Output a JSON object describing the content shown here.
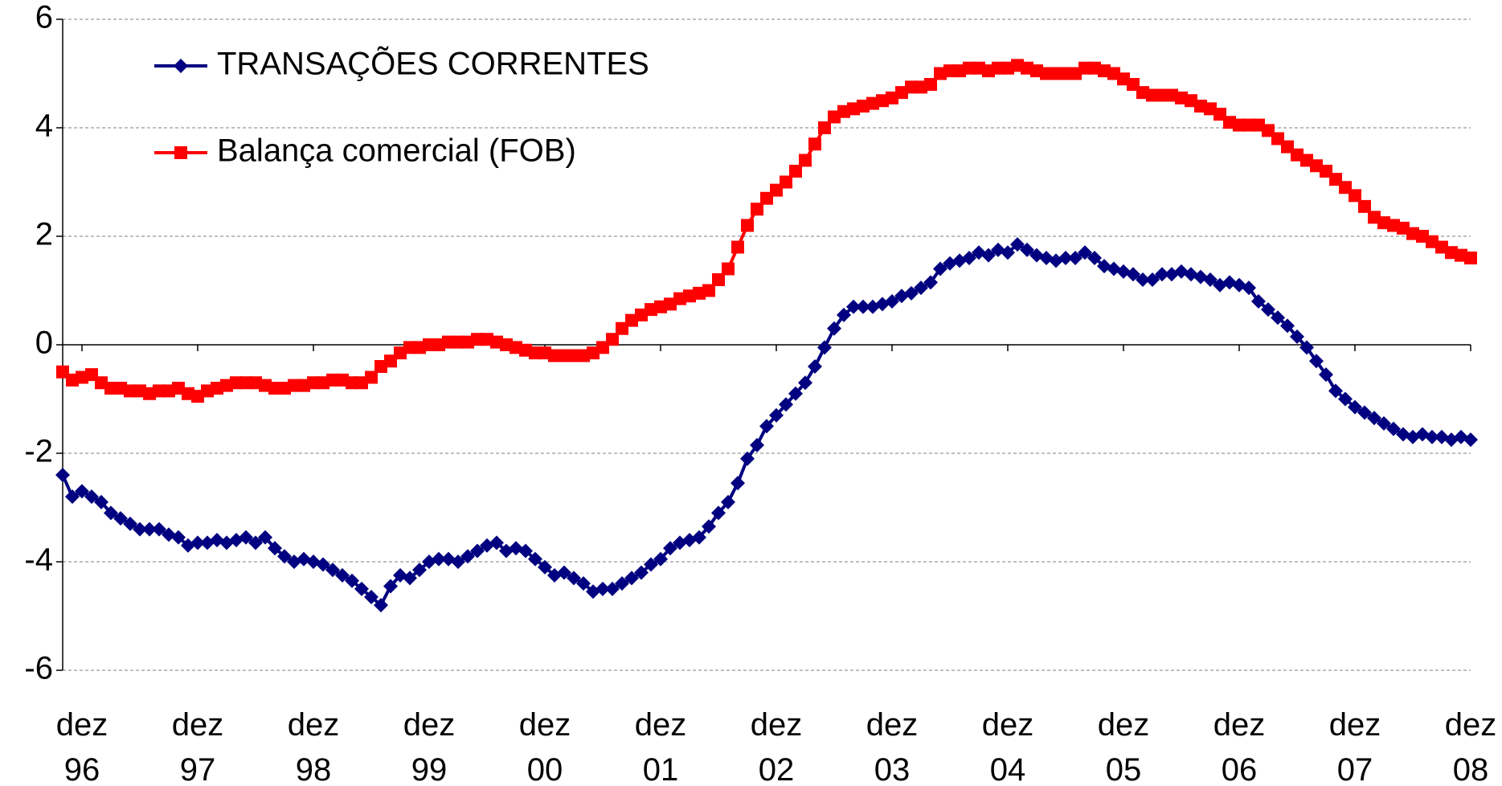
{
  "chart_data": {
    "type": "line",
    "categories": [
      null,
      null,
      "dez 96",
      null,
      null,
      null,
      null,
      null,
      null,
      null,
      null,
      null,
      null,
      null,
      "dez 97",
      null,
      null,
      null,
      null,
      null,
      null,
      null,
      null,
      null,
      null,
      null,
      "dez 98",
      null,
      null,
      null,
      null,
      null,
      null,
      null,
      null,
      null,
      null,
      null,
      "dez 99",
      null,
      null,
      null,
      null,
      null,
      null,
      null,
      null,
      null,
      null,
      null,
      "dez 00",
      null,
      null,
      null,
      null,
      null,
      null,
      null,
      null,
      null,
      null,
      null,
      "dez 01",
      null,
      null,
      null,
      null,
      null,
      null,
      null,
      null,
      null,
      null,
      null,
      "dez 02",
      null,
      null,
      null,
      null,
      null,
      null,
      null,
      null,
      null,
      null,
      null,
      "dez 03",
      null,
      null,
      null,
      null,
      null,
      null,
      null,
      null,
      null,
      null,
      null,
      "dez 04",
      null,
      null,
      null,
      null,
      null,
      null,
      null,
      null,
      null,
      null,
      null,
      "dez 05",
      null,
      null,
      null,
      null,
      null,
      null,
      null,
      null,
      null,
      null,
      null,
      "dez 06",
      null,
      null,
      null,
      null,
      null,
      null,
      null,
      null,
      null,
      null,
      null,
      "dez 07",
      null,
      null,
      null,
      null,
      null,
      null,
      null,
      null,
      null,
      null,
      null,
      "dez 08"
    ],
    "series": [
      {
        "name": "TRANSAÇÕES CORRENTES",
        "color": "#000080",
        "marker": "diamond",
        "values": [
          -2.4,
          -2.8,
          -2.7,
          -2.8,
          -2.9,
          -3.1,
          -3.2,
          -3.3,
          -3.4,
          -3.4,
          -3.4,
          -3.5,
          -3.55,
          -3.7,
          -3.65,
          -3.65,
          -3.6,
          -3.65,
          -3.6,
          -3.55,
          -3.65,
          -3.55,
          -3.75,
          -3.9,
          -4.0,
          -3.95,
          -4.0,
          -4.05,
          -4.15,
          -4.25,
          -4.35,
          -4.5,
          -4.65,
          -4.8,
          -4.45,
          -4.25,
          -4.3,
          -4.15,
          -4.0,
          -3.95,
          -3.95,
          -4.0,
          -3.9,
          -3.8,
          -3.7,
          -3.65,
          -3.8,
          -3.75,
          -3.8,
          -3.95,
          -4.1,
          -4.25,
          -4.2,
          -4.3,
          -4.4,
          -4.55,
          -4.5,
          -4.5,
          -4.4,
          -4.3,
          -4.2,
          -4.05,
          -3.95,
          -3.75,
          -3.65,
          -3.6,
          -3.55,
          -3.35,
          -3.1,
          -2.9,
          -2.55,
          -2.1,
          -1.85,
          -1.5,
          -1.3,
          -1.1,
          -0.9,
          -0.7,
          -0.4,
          -0.05,
          0.3,
          0.55,
          0.7,
          0.7,
          0.7,
          0.75,
          0.8,
          0.9,
          0.95,
          1.05,
          1.15,
          1.4,
          1.5,
          1.55,
          1.6,
          1.7,
          1.65,
          1.75,
          1.7,
          1.85,
          1.75,
          1.65,
          1.6,
          1.55,
          1.6,
          1.6,
          1.7,
          1.6,
          1.45,
          1.4,
          1.35,
          1.3,
          1.2,
          1.2,
          1.3,
          1.3,
          1.35,
          1.3,
          1.25,
          1.2,
          1.1,
          1.15,
          1.1,
          1.05,
          0.8,
          0.65,
          0.5,
          0.35,
          0.15,
          -0.05,
          -0.3,
          -0.55,
          -0.85,
          -1.0,
          -1.15,
          -1.25,
          -1.35,
          -1.45,
          -1.55,
          -1.65,
          -1.7,
          -1.65,
          -1.7,
          -1.7,
          -1.75,
          -1.7,
          -1.75
        ]
      },
      {
        "name": "Balança comercial (FOB)",
        "color": "#ff0000",
        "marker": "square",
        "values": [
          -0.5,
          -0.65,
          -0.6,
          -0.55,
          -0.7,
          -0.8,
          -0.8,
          -0.85,
          -0.85,
          -0.9,
          -0.85,
          -0.85,
          -0.8,
          -0.9,
          -0.95,
          -0.85,
          -0.8,
          -0.75,
          -0.7,
          -0.7,
          -0.7,
          -0.75,
          -0.8,
          -0.8,
          -0.75,
          -0.75,
          -0.7,
          -0.7,
          -0.65,
          -0.65,
          -0.7,
          -0.7,
          -0.6,
          -0.4,
          -0.3,
          -0.15,
          -0.05,
          -0.05,
          0.0,
          0.0,
          0.05,
          0.05,
          0.05,
          0.1,
          0.1,
          0.05,
          0.0,
          -0.05,
          -0.1,
          -0.15,
          -0.15,
          -0.2,
          -0.2,
          -0.2,
          -0.2,
          -0.15,
          -0.05,
          0.1,
          0.3,
          0.45,
          0.55,
          0.65,
          0.7,
          0.75,
          0.85,
          0.9,
          0.95,
          1.0,
          1.2,
          1.4,
          1.8,
          2.2,
          2.5,
          2.7,
          2.85,
          3.0,
          3.2,
          3.4,
          3.7,
          4.0,
          4.2,
          4.3,
          4.35,
          4.4,
          4.45,
          4.5,
          4.55,
          4.65,
          4.75,
          4.75,
          4.8,
          5.0,
          5.05,
          5.05,
          5.1,
          5.1,
          5.05,
          5.1,
          5.1,
          5.15,
          5.1,
          5.05,
          5.0,
          5.0,
          5.0,
          5.0,
          5.1,
          5.1,
          5.05,
          5.0,
          4.9,
          4.8,
          4.65,
          4.6,
          4.6,
          4.6,
          4.55,
          4.5,
          4.4,
          4.35,
          4.25,
          4.1,
          4.05,
          4.05,
          4.05,
          3.95,
          3.8,
          3.65,
          3.5,
          3.4,
          3.3,
          3.2,
          3.05,
          2.9,
          2.75,
          2.55,
          2.35,
          2.25,
          2.2,
          2.15,
          2.05,
          2.0,
          1.9,
          1.8,
          1.7,
          1.65,
          1.6
        ]
      }
    ],
    "ylim": [
      -6,
      6
    ],
    "yticks": [
      -6,
      -4,
      -2,
      0,
      2,
      4,
      6
    ],
    "grid": true,
    "legend": "upper left"
  }
}
